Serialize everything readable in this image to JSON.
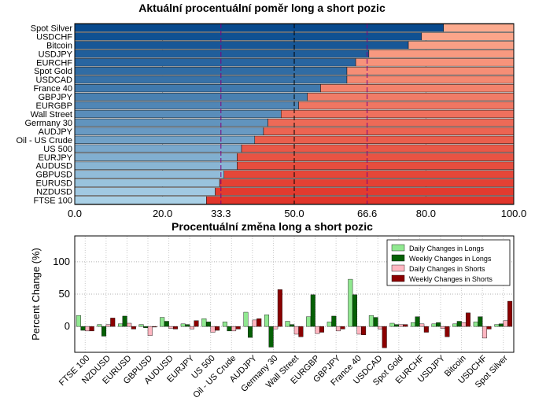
{
  "chart_data": [
    {
      "type": "bar",
      "orientation": "horizontal",
      "stacked": true,
      "title": "Aktuální procentuální poměr long a short pozic",
      "categories": [
        "FTSE 100",
        "NZDUSD",
        "EURUSD",
        "GBPUSD",
        "AUDUSD",
        "EURJPY",
        "US 500",
        "Oil - US Crude",
        "AUDJPY",
        "Germany 30",
        "Wall Street",
        "EURGBP",
        "GBPJPY",
        "France 40",
        "USDCAD",
        "Spot Gold",
        "EURCHF",
        "USDJPY",
        "Bitcoin",
        "USDCHF",
        "Spot Silver"
      ],
      "series": [
        {
          "values": [
            30,
            32,
            33,
            34,
            37,
            37,
            38,
            41,
            43,
            44,
            47,
            51,
            53,
            56,
            62,
            62,
            64,
            67,
            76,
            79,
            84
          ]
        },
        {
          "values": [
            70,
            68,
            67,
            66,
            63,
            63,
            62,
            59,
            57,
            56,
            53,
            49,
            47,
            44,
            38,
            38,
            36,
            33,
            24,
            21,
            16
          ]
        }
      ],
      "xlim": [
        0,
        100
      ],
      "xticks": [
        "0.0",
        "20.0",
        "33.3",
        "50.0",
        "66.6",
        "80.0",
        "100.0"
      ],
      "reference_lines": [
        33.3,
        50.0,
        66.6
      ],
      "grid": true
    },
    {
      "type": "bar",
      "title": "Procentuální změna long a short pozic",
      "ylabel": "Percent Change (%)",
      "ylim": [
        -40,
        140
      ],
      "yticks": [
        "0",
        "50",
        "100"
      ],
      "categories": [
        "FTSE 100",
        "NZDUSD",
        "EURUSD",
        "GBPUSD",
        "AUDUSD",
        "EURJPY",
        "US 500",
        "Oil - US Crude",
        "AUDJPY",
        "Germany 30",
        "Wall Street",
        "EURGBP",
        "GBPJPY",
        "France 40",
        "USDCAD",
        "Spot Gold",
        "EURCHF",
        "USDJPY",
        "Bitcoin",
        "USDCHF",
        "Spot Silver"
      ],
      "series": [
        {
          "name": "Daily Changes in Longs",
          "values": [
            17,
            3,
            4,
            3,
            14,
            4,
            12,
            7,
            22,
            18,
            8,
            15,
            7,
            73,
            17,
            5,
            6,
            4,
            4,
            7,
            3
          ]
        },
        {
          "name": "Weekly Changes in Longs",
          "values": [
            -6,
            -15,
            16,
            -2,
            8,
            3,
            7,
            -7,
            -17,
            -32,
            3,
            49,
            16,
            49,
            14,
            3,
            15,
            6,
            8,
            15,
            4
          ]
        },
        {
          "name": "Daily Changes in Shorts",
          "values": [
            -7,
            3,
            5,
            -14,
            -3,
            -4,
            -9,
            -7,
            10,
            -4,
            -12,
            -11,
            -7,
            -12,
            -4,
            3,
            4,
            -3,
            6,
            -18,
            9
          ]
        },
        {
          "name": "Weekly Changes in Shorts",
          "values": [
            -7,
            13,
            -4,
            -1,
            -4,
            9,
            -6,
            -4,
            12,
            57,
            -16,
            -9,
            -4,
            -13,
            -33,
            3,
            -9,
            -16,
            21,
            -4,
            39
          ]
        }
      ],
      "legend": "top-right",
      "grid": true
    }
  ],
  "colors": {
    "long_dark": "#084a8e",
    "long_light": "#a9d0e6",
    "short_light": "#fcab8f",
    "short_dark": "#e1352a",
    "ref_line": "#800080",
    "daily_longs": "#90e890",
    "weekly_longs": "#056005",
    "daily_shorts": "#ffb6c1",
    "weekly_shorts": "#8b0000"
  }
}
